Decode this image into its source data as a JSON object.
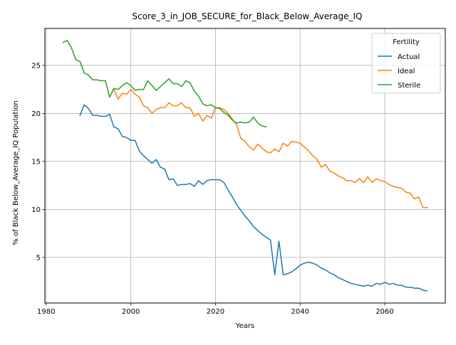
{
  "chart_data": {
    "type": "line",
    "title": "Score_3_in_JOB_SECURE_for_Black_Below_Average_IQ",
    "xlabel": "Years",
    "ylabel": "% of Black Below_Average_IQ Population",
    "xlim": [
      1979.7,
      2074.3
    ],
    "ylim": [
      0.25,
      28.85
    ],
    "xticks": [
      1980,
      2000,
      2020,
      2040,
      2060
    ],
    "yticks": [
      5,
      10,
      15,
      20,
      25
    ],
    "grid": true,
    "legend": {
      "title": "Fertility",
      "placement": "top-right"
    },
    "series": [
      {
        "name": "Actual",
        "color": "#1f77b4",
        "x": [
          1988,
          1989,
          1990,
          1991,
          1992,
          1993,
          1994,
          1995,
          1996,
          1997,
          1998,
          1999,
          2000,
          2001,
          2002,
          2003,
          2004,
          2005,
          2006,
          2007,
          2008,
          2009,
          2010,
          2011,
          2012,
          2013,
          2014,
          2015,
          2016,
          2017,
          2018,
          2019,
          2020,
          2021,
          2022,
          2023,
          2024,
          2025,
          2026,
          2027,
          2028,
          2029,
          2030,
          2031,
          2032,
          2033,
          2034,
          2035,
          2036,
          2037,
          2038,
          2039,
          2040,
          2041,
          2042,
          2043,
          2044,
          2045,
          2046,
          2047,
          2048,
          2049,
          2050,
          2051,
          2052,
          2053,
          2054,
          2055,
          2056,
          2057,
          2058,
          2059,
          2060,
          2061,
          2062,
          2063,
          2064,
          2065,
          2066,
          2067,
          2068,
          2069,
          2070
        ],
        "values": [
          19.8,
          20.9,
          20.5,
          19.8,
          19.8,
          19.7,
          19.7,
          19.9,
          18.6,
          18.4,
          17.6,
          17.5,
          17.2,
          17.2,
          16.1,
          15.6,
          15.2,
          14.8,
          15.2,
          14.4,
          14.2,
          13.1,
          13.2,
          12.5,
          12.6,
          12.6,
          12.7,
          12.4,
          13.0,
          12.6,
          13.0,
          13.1,
          13.1,
          13.1,
          12.8,
          12.0,
          11.3,
          10.5,
          9.9,
          9.3,
          8.8,
          8.2,
          7.8,
          7.4,
          7.1,
          6.8,
          3.2,
          6.7,
          3.2,
          3.3,
          3.5,
          3.8,
          4.2,
          4.4,
          4.5,
          4.4,
          4.2,
          3.9,
          3.7,
          3.4,
          3.2,
          2.9,
          2.7,
          2.5,
          2.3,
          2.2,
          2.1,
          2.0,
          2.1,
          2.0,
          2.3,
          2.2,
          2.4,
          2.2,
          2.3,
          2.1,
          2.1,
          1.9,
          1.9,
          1.8,
          1.8,
          1.6,
          1.5
        ]
      },
      {
        "name": "Ideal",
        "color": "#ff7f0e",
        "x": [
          1996,
          1997,
          1998,
          1999,
          2000,
          2001,
          2002,
          2003,
          2004,
          2005,
          2006,
          2007,
          2008,
          2009,
          2010,
          2011,
          2012,
          2013,
          2014,
          2015,
          2016,
          2017,
          2018,
          2019,
          2020,
          2021,
          2022,
          2023,
          2024,
          2025,
          2026,
          2027,
          2028,
          2029,
          2030,
          2031,
          2032,
          2033,
          2034,
          2035,
          2036,
          2037,
          2038,
          2039,
          2040,
          2041,
          2042,
          2043,
          2044,
          2045,
          2046,
          2047,
          2048,
          2049,
          2050,
          2051,
          2052,
          2053,
          2054,
          2055,
          2056,
          2057,
          2058,
          2059,
          2060,
          2061,
          2062,
          2063,
          2064,
          2065,
          2066,
          2067,
          2068,
          2069,
          2070
        ],
        "values": [
          22.5,
          21.5,
          22.1,
          22.0,
          22.5,
          22.0,
          21.7,
          20.8,
          20.6,
          20.0,
          20.4,
          20.6,
          20.6,
          21.1,
          20.8,
          20.8,
          21.1,
          20.6,
          20.6,
          19.7,
          20.0,
          19.2,
          19.8,
          19.5,
          20.6,
          20.6,
          20.4,
          20.0,
          19.4,
          18.8,
          17.4,
          17.1,
          16.5,
          16.2,
          16.8,
          16.4,
          16.0,
          15.9,
          16.3,
          16.0,
          16.9,
          16.6,
          17.1,
          17.0,
          16.9,
          16.5,
          16.1,
          15.6,
          15.2,
          14.4,
          14.7,
          14.0,
          13.8,
          13.5,
          13.3,
          13.0,
          13.0,
          12.8,
          13.2,
          12.8,
          13.4,
          12.8,
          13.2,
          13.0,
          12.9,
          12.6,
          12.4,
          12.3,
          12.2,
          11.8,
          11.7,
          11.1,
          11.3,
          10.2,
          10.2
        ]
      },
      {
        "name": "Sterile",
        "color": "#2ca02c",
        "x": [
          1984,
          1985,
          1986,
          1987,
          1988,
          1989,
          1990,
          1991,
          1992,
          1993,
          1994,
          1995,
          1996,
          1997,
          1998,
          1999,
          2000,
          2001,
          2002,
          2003,
          2004,
          2005,
          2006,
          2007,
          2008,
          2009,
          2010,
          2011,
          2012,
          2013,
          2014,
          2015,
          2016,
          2017,
          2018,
          2019,
          2020,
          2021,
          2022,
          2023,
          2024,
          2025,
          2026,
          2027,
          2028,
          2029,
          2030,
          2031,
          2032
        ],
        "values": [
          27.4,
          27.6,
          26.8,
          25.6,
          25.4,
          24.2,
          24.0,
          23.5,
          23.5,
          23.4,
          23.4,
          21.7,
          22.6,
          22.5,
          22.9,
          23.2,
          22.9,
          22.4,
          22.5,
          22.5,
          23.4,
          22.9,
          22.4,
          22.8,
          23.2,
          23.6,
          23.1,
          23.1,
          22.8,
          23.4,
          23.2,
          22.3,
          21.8,
          21.0,
          20.8,
          20.9,
          20.6,
          20.5,
          20.1,
          19.8,
          19.3,
          19.0,
          19.1,
          19.0,
          19.1,
          19.6,
          19.0,
          18.7,
          18.6
        ]
      }
    ]
  }
}
